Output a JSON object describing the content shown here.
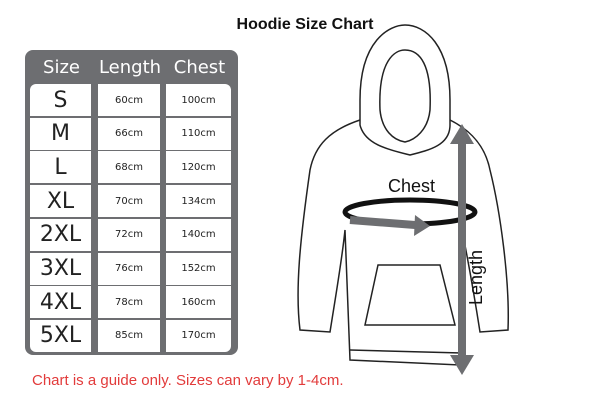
{
  "title": "Hoodie Size Chart",
  "table": {
    "headers": [
      "Size",
      "Length",
      "Chest"
    ],
    "rows": [
      [
        "S",
        "60cm",
        "100cm"
      ],
      [
        "M",
        "66cm",
        "110cm"
      ],
      [
        "L",
        "68cm",
        "120cm"
      ],
      [
        "XL",
        "70cm",
        "134cm"
      ],
      [
        "2XL",
        "72cm",
        "140cm"
      ],
      [
        "3XL",
        "76cm",
        "152cm"
      ],
      [
        "4XL",
        "78cm",
        "160cm"
      ],
      [
        "5XL",
        "85cm",
        "170cm"
      ]
    ]
  },
  "diagram": {
    "chest_label": "Chest",
    "length_label": "Length",
    "arrow_color": "#6d6e71"
  },
  "note": "Chart is a guide only. Sizes can vary by 1-4cm.",
  "colors": {
    "table_bg": "#6d6e71",
    "note": "#e23b3b"
  }
}
